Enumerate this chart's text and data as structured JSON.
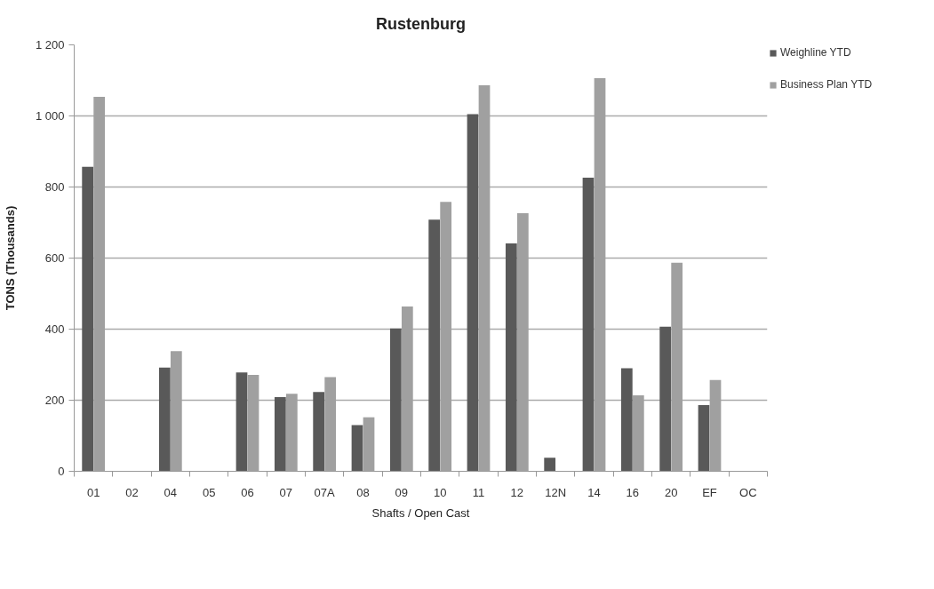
{
  "chart_data": {
    "type": "bar",
    "title": "Rustenburg",
    "xlabel": "Shafts / Open Cast",
    "ylabel": "TONS (Thousands)",
    "categories": [
      "01",
      "02",
      "04",
      "05",
      "06",
      "07",
      "07A",
      "08",
      "09",
      "10",
      "11",
      "12",
      "12N",
      "14",
      "16",
      "20",
      "EF",
      "OC"
    ],
    "series": [
      {
        "name": "Weighline YTD",
        "color": "#595959",
        "values": [
          857,
          null,
          292,
          null,
          278,
          209,
          223,
          130,
          402,
          708,
          1005,
          641,
          38,
          826,
          290,
          407,
          186,
          null
        ]
      },
      {
        "name": "Business Plan YTD",
        "color": "#a0a0a0",
        "values": [
          1054,
          null,
          338,
          null,
          271,
          218,
          265,
          152,
          464,
          758,
          1086,
          726,
          null,
          1106,
          214,
          587,
          257,
          null
        ]
      }
    ],
    "ylim": [
      0,
      1200
    ],
    "yticks": [
      0,
      200,
      400,
      600,
      800,
      {
        "value": 1000,
        "label": "1 000"
      },
      {
        "value": 1200,
        "label": "1 200"
      }
    ],
    "grid": "y",
    "legend": "top right"
  }
}
